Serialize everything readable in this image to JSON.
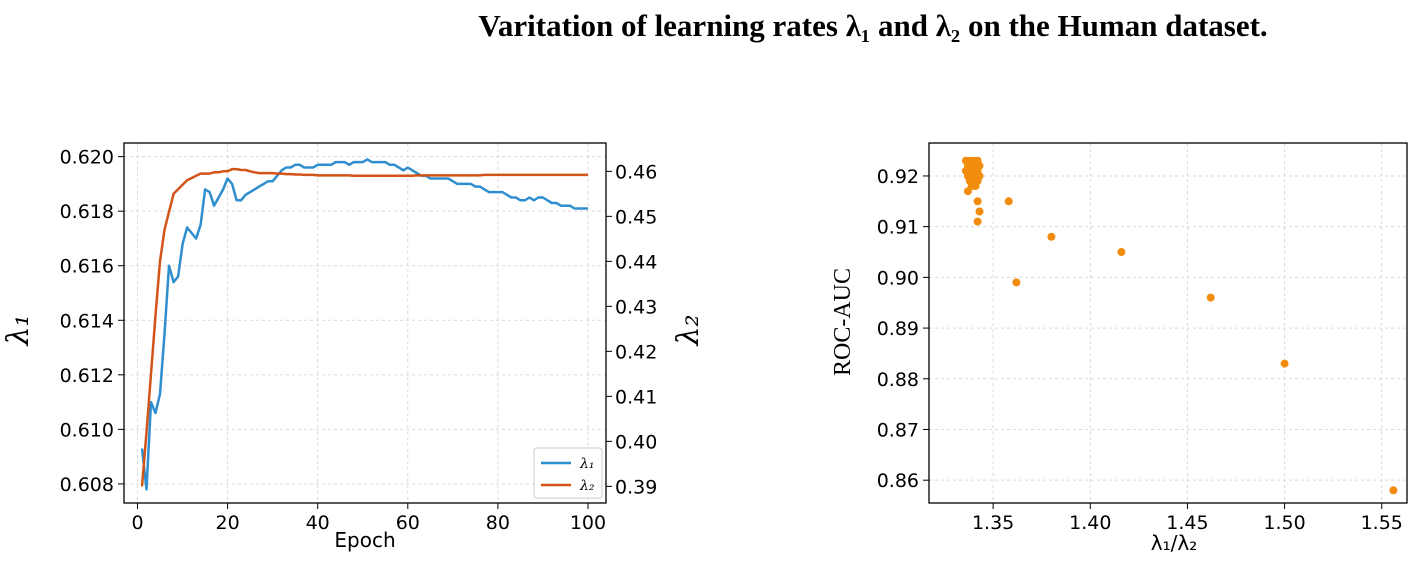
{
  "title": "Varitation of learning rates λ₁ and λ₂ on the Human dataset.",
  "colors": {
    "lambda1": "#2f8fce",
    "lambda2": "#d35418",
    "scatter": "#f28c0f",
    "grid": "#d9d9d9"
  },
  "chart_data": [
    {
      "type": "line",
      "xlabel": "Epoch",
      "ylabel": "λ₁",
      "y2label": "λ₂",
      "xlim": [
        -3,
        104
      ],
      "ylim": [
        0.6073,
        0.6205
      ],
      "y2lim": [
        0.3863,
        0.4663
      ],
      "xticks": [
        "0",
        "20",
        "40",
        "60",
        "80",
        "100"
      ],
      "yticks": [
        "0.608",
        "0.610",
        "0.612",
        "0.614",
        "0.616",
        "0.618",
        "0.620"
      ],
      "y2ticks": [
        "0.39",
        "0.40",
        "0.41",
        "0.42",
        "0.43",
        "0.44",
        "0.45",
        "0.46"
      ],
      "grid": true,
      "legend_position": "bottom-right",
      "series": [
        {
          "name": "λ₁",
          "axis": "left",
          "x": [
            1,
            2,
            3,
            4,
            5,
            6,
            7,
            8,
            9,
            10,
            11,
            12,
            13,
            14,
            15,
            16,
            17,
            18,
            19,
            20,
            21,
            22,
            23,
            24,
            25,
            26,
            27,
            28,
            29,
            30,
            31,
            32,
            33,
            34,
            35,
            36,
            37,
            38,
            39,
            40,
            41,
            42,
            43,
            44,
            45,
            46,
            47,
            48,
            49,
            50,
            51,
            52,
            53,
            54,
            55,
            56,
            57,
            58,
            59,
            60,
            61,
            62,
            63,
            64,
            65,
            66,
            67,
            68,
            69,
            70,
            71,
            72,
            73,
            74,
            75,
            76,
            77,
            78,
            79,
            80,
            81,
            82,
            83,
            84,
            85,
            86,
            87,
            88,
            89,
            90,
            91,
            92,
            93,
            94,
            95,
            96,
            97,
            98,
            99,
            100
          ],
          "values": [
            0.6093,
            0.6078,
            0.611,
            0.6106,
            0.6113,
            0.6135,
            0.616,
            0.6154,
            0.6156,
            0.6168,
            0.6174,
            0.6172,
            0.617,
            0.6175,
            0.6188,
            0.6187,
            0.6182,
            0.6185,
            0.6188,
            0.6192,
            0.619,
            0.6184,
            0.6184,
            0.6186,
            0.6187,
            0.6188,
            0.6189,
            0.619,
            0.6191,
            0.6191,
            0.6193,
            0.6195,
            0.6196,
            0.6196,
            0.6197,
            0.6197,
            0.6196,
            0.6196,
            0.6196,
            0.6197,
            0.6197,
            0.6197,
            0.6197,
            0.6198,
            0.6198,
            0.6198,
            0.6197,
            0.6198,
            0.6198,
            0.6198,
            0.6199,
            0.6198,
            0.6198,
            0.6198,
            0.6198,
            0.6197,
            0.6197,
            0.6196,
            0.6195,
            0.6196,
            0.6195,
            0.6194,
            0.6193,
            0.6193,
            0.6192,
            0.6192,
            0.6192,
            0.6192,
            0.6192,
            0.6191,
            0.619,
            0.619,
            0.619,
            0.619,
            0.6189,
            0.6189,
            0.6188,
            0.6187,
            0.6187,
            0.6187,
            0.6187,
            0.6186,
            0.6185,
            0.6185,
            0.6184,
            0.6184,
            0.6185,
            0.6184,
            0.6185,
            0.6185,
            0.6184,
            0.6183,
            0.6183,
            0.6182,
            0.6182,
            0.6182,
            0.6181,
            0.6181,
            0.6181,
            0.6181
          ]
        },
        {
          "name": "λ₂",
          "axis": "right",
          "x": [
            1,
            2,
            3,
            4,
            5,
            6,
            7,
            8,
            9,
            10,
            11,
            12,
            13,
            14,
            15,
            16,
            17,
            18,
            19,
            20,
            21,
            22,
            23,
            24,
            25,
            26,
            27,
            28,
            29,
            30,
            31,
            32,
            33,
            34,
            35,
            36,
            37,
            38,
            39,
            40,
            41,
            42,
            43,
            44,
            45,
            46,
            47,
            48,
            49,
            50,
            51,
            52,
            53,
            54,
            55,
            56,
            57,
            58,
            59,
            60,
            61,
            62,
            63,
            64,
            65,
            66,
            67,
            68,
            69,
            70,
            71,
            72,
            73,
            74,
            75,
            76,
            77,
            78,
            79,
            80,
            81,
            82,
            83,
            84,
            85,
            86,
            87,
            88,
            89,
            90,
            91,
            92,
            93,
            94,
            95,
            96,
            97,
            98,
            99,
            100
          ],
          "values": [
            0.39,
            0.402,
            0.415,
            0.428,
            0.44,
            0.447,
            0.451,
            0.455,
            0.456,
            0.457,
            0.458,
            0.4585,
            0.459,
            0.4595,
            0.4595,
            0.4595,
            0.4598,
            0.4598,
            0.46,
            0.46,
            0.4605,
            0.4605,
            0.4603,
            0.4603,
            0.46,
            0.4598,
            0.4596,
            0.4596,
            0.4596,
            0.4596,
            0.4595,
            0.4595,
            0.4594,
            0.4594,
            0.4593,
            0.4593,
            0.4592,
            0.4592,
            0.4592,
            0.4591,
            0.4591,
            0.4591,
            0.4591,
            0.4591,
            0.4591,
            0.4591,
            0.4591,
            0.459,
            0.459,
            0.459,
            0.459,
            0.459,
            0.459,
            0.459,
            0.459,
            0.459,
            0.459,
            0.459,
            0.459,
            0.459,
            0.459,
            0.4591,
            0.4591,
            0.4591,
            0.4591,
            0.4591,
            0.4591,
            0.4591,
            0.4591,
            0.4591,
            0.4591,
            0.4591,
            0.4591,
            0.4591,
            0.4591,
            0.4591,
            0.4592,
            0.4592,
            0.4592,
            0.4592,
            0.4592,
            0.4592,
            0.4592,
            0.4592,
            0.4592,
            0.4592,
            0.4592,
            0.4592,
            0.4592,
            0.4592,
            0.4592,
            0.4592,
            0.4592,
            0.4592,
            0.4592,
            0.4592,
            0.4592,
            0.4592,
            0.4592,
            0.4592
          ]
        }
      ]
    },
    {
      "type": "scatter",
      "xlabel": "λ₁/λ₂",
      "ylabel": "ROC-AUC",
      "xlim": [
        1.317,
        1.563
      ],
      "ylim": [
        0.8555,
        0.9265
      ],
      "xticks": [
        "1.35",
        "1.40",
        "1.45",
        "1.50",
        "1.55"
      ],
      "yticks": [
        "0.86",
        "0.87",
        "0.88",
        "0.89",
        "0.90",
        "0.91",
        "0.92"
      ],
      "grid": true,
      "points": [
        [
          1.336,
          0.923
        ],
        [
          1.338,
          0.923
        ],
        [
          1.34,
          0.923
        ],
        [
          1.342,
          0.923
        ],
        [
          1.337,
          0.922
        ],
        [
          1.339,
          0.922
        ],
        [
          1.341,
          0.922
        ],
        [
          1.343,
          0.922
        ],
        [
          1.336,
          0.921
        ],
        [
          1.338,
          0.921
        ],
        [
          1.34,
          0.921
        ],
        [
          1.342,
          0.921
        ],
        [
          1.337,
          0.92
        ],
        [
          1.339,
          0.92
        ],
        [
          1.341,
          0.92
        ],
        [
          1.343,
          0.92
        ],
        [
          1.338,
          0.919
        ],
        [
          1.34,
          0.919
        ],
        [
          1.342,
          0.919
        ],
        [
          1.339,
          0.918
        ],
        [
          1.341,
          0.918
        ],
        [
          1.337,
          0.917
        ],
        [
          1.342,
          0.915
        ],
        [
          1.343,
          0.913
        ],
        [
          1.342,
          0.911
        ],
        [
          1.358,
          0.915
        ],
        [
          1.38,
          0.908
        ],
        [
          1.362,
          0.899
        ],
        [
          1.416,
          0.905
        ],
        [
          1.462,
          0.896
        ],
        [
          1.5,
          0.883
        ],
        [
          1.556,
          0.858
        ]
      ]
    }
  ]
}
